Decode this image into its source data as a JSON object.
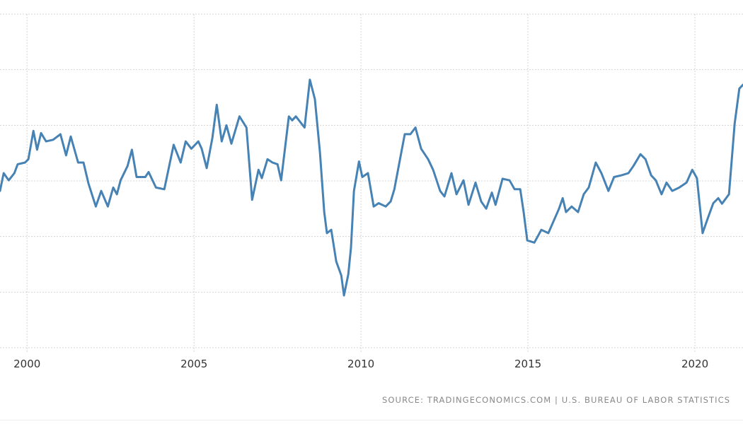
{
  "chart_data": {
    "type": "line",
    "title": "",
    "xlabel": "",
    "ylabel": "",
    "xlim": [
      1999.19,
      2021.44
    ],
    "ylim": [
      0,
      6
    ],
    "grid": true,
    "line_color": "#4682b4",
    "x_ticks": [
      {
        "value": 2000,
        "label": "2000"
      },
      {
        "value": 2005,
        "label": "2005"
      },
      {
        "value": 2010,
        "label": "2010"
      },
      {
        "value": 2015,
        "label": "2015"
      },
      {
        "value": 2020,
        "label": "2020"
      }
    ],
    "y_gridlines": [
      0,
      1,
      2,
      3,
      4,
      5,
      6
    ],
    "series": [
      {
        "name": "series",
        "points": [
          [
            1999.19,
            2.82
          ],
          [
            1999.3,
            3.14
          ],
          [
            1999.45,
            3.01
          ],
          [
            1999.62,
            3.14
          ],
          [
            1999.72,
            3.3
          ],
          [
            1999.94,
            3.33
          ],
          [
            2000.04,
            3.39
          ],
          [
            2000.19,
            3.9
          ],
          [
            2000.3,
            3.56
          ],
          [
            2000.42,
            3.86
          ],
          [
            2000.57,
            3.71
          ],
          [
            2000.78,
            3.74
          ],
          [
            2001.0,
            3.84
          ],
          [
            2001.17,
            3.46
          ],
          [
            2001.31,
            3.8
          ],
          [
            2001.53,
            3.33
          ],
          [
            2001.69,
            3.33
          ],
          [
            2001.84,
            2.95
          ],
          [
            2002.06,
            2.54
          ],
          [
            2002.22,
            2.82
          ],
          [
            2002.42,
            2.54
          ],
          [
            2002.58,
            2.88
          ],
          [
            2002.69,
            2.76
          ],
          [
            2002.8,
            3.01
          ],
          [
            2003.01,
            3.27
          ],
          [
            2003.14,
            3.56
          ],
          [
            2003.28,
            3.07
          ],
          [
            2003.54,
            3.07
          ],
          [
            2003.64,
            3.16
          ],
          [
            2003.86,
            2.88
          ],
          [
            2004.11,
            2.85
          ],
          [
            2004.39,
            3.65
          ],
          [
            2004.6,
            3.33
          ],
          [
            2004.75,
            3.71
          ],
          [
            2004.92,
            3.58
          ],
          [
            2005.13,
            3.71
          ],
          [
            2005.23,
            3.58
          ],
          [
            2005.38,
            3.23
          ],
          [
            2005.55,
            3.77
          ],
          [
            2005.68,
            4.37
          ],
          [
            2005.83,
            3.71
          ],
          [
            2005.97,
            4.0
          ],
          [
            2006.12,
            3.67
          ],
          [
            2006.36,
            4.16
          ],
          [
            2006.57,
            3.96
          ],
          [
            2006.74,
            2.66
          ],
          [
            2006.93,
            3.2
          ],
          [
            2007.03,
            3.05
          ],
          [
            2007.2,
            3.39
          ],
          [
            2007.35,
            3.33
          ],
          [
            2007.5,
            3.3
          ],
          [
            2007.61,
            3.01
          ],
          [
            2007.84,
            4.16
          ],
          [
            2007.94,
            4.09
          ],
          [
            2008.05,
            4.16
          ],
          [
            2008.31,
            3.96
          ],
          [
            2008.47,
            4.82
          ],
          [
            2008.62,
            4.47
          ],
          [
            2008.77,
            3.52
          ],
          [
            2008.9,
            2.44
          ],
          [
            2008.98,
            2.06
          ],
          [
            2009.11,
            2.12
          ],
          [
            2009.26,
            1.55
          ],
          [
            2009.41,
            1.3
          ],
          [
            2009.49,
            0.94
          ],
          [
            2009.62,
            1.32
          ],
          [
            2009.7,
            1.8
          ],
          [
            2009.79,
            2.82
          ],
          [
            2009.94,
            3.35
          ],
          [
            2010.04,
            3.07
          ],
          [
            2010.21,
            3.14
          ],
          [
            2010.38,
            2.54
          ],
          [
            2010.53,
            2.6
          ],
          [
            2010.74,
            2.54
          ],
          [
            2010.89,
            2.63
          ],
          [
            2011.0,
            2.85
          ],
          [
            2011.17,
            3.39
          ],
          [
            2011.31,
            3.84
          ],
          [
            2011.48,
            3.84
          ],
          [
            2011.63,
            3.96
          ],
          [
            2011.8,
            3.58
          ],
          [
            2012.01,
            3.39
          ],
          [
            2012.16,
            3.2
          ],
          [
            2012.37,
            2.82
          ],
          [
            2012.5,
            2.72
          ],
          [
            2012.71,
            3.14
          ],
          [
            2012.86,
            2.76
          ],
          [
            2013.07,
            3.01
          ],
          [
            2013.22,
            2.57
          ],
          [
            2013.43,
            2.97
          ],
          [
            2013.6,
            2.63
          ],
          [
            2013.75,
            2.5
          ],
          [
            2013.92,
            2.79
          ],
          [
            2014.03,
            2.57
          ],
          [
            2014.24,
            3.04
          ],
          [
            2014.45,
            3.01
          ],
          [
            2014.6,
            2.85
          ],
          [
            2014.77,
            2.85
          ],
          [
            2014.87,
            2.44
          ],
          [
            2014.98,
            1.93
          ],
          [
            2015.19,
            1.89
          ],
          [
            2015.4,
            2.12
          ],
          [
            2015.61,
            2.06
          ],
          [
            2015.93,
            2.5
          ],
          [
            2016.04,
            2.69
          ],
          [
            2016.14,
            2.44
          ],
          [
            2016.31,
            2.54
          ],
          [
            2016.5,
            2.44
          ],
          [
            2016.67,
            2.76
          ],
          [
            2016.82,
            2.88
          ],
          [
            2017.03,
            3.33
          ],
          [
            2017.2,
            3.14
          ],
          [
            2017.41,
            2.82
          ],
          [
            2017.58,
            3.07
          ],
          [
            2017.8,
            3.1
          ],
          [
            2018.01,
            3.14
          ],
          [
            2018.16,
            3.27
          ],
          [
            2018.37,
            3.48
          ],
          [
            2018.52,
            3.39
          ],
          [
            2018.69,
            3.1
          ],
          [
            2018.83,
            3.01
          ],
          [
            2019.0,
            2.76
          ],
          [
            2019.15,
            2.97
          ],
          [
            2019.32,
            2.82
          ],
          [
            2019.53,
            2.88
          ],
          [
            2019.75,
            2.97
          ],
          [
            2019.92,
            3.2
          ],
          [
            2020.06,
            3.05
          ],
          [
            2020.23,
            2.06
          ],
          [
            2020.38,
            2.32
          ],
          [
            2020.55,
            2.6
          ],
          [
            2020.7,
            2.69
          ],
          [
            2020.81,
            2.59
          ],
          [
            2021.02,
            2.76
          ],
          [
            2021.19,
            4.03
          ],
          [
            2021.33,
            4.66
          ],
          [
            2021.44,
            4.73
          ]
        ]
      }
    ]
  },
  "source": "SOURCE: TRADINGECONOMICS.COM | U.S. BUREAU OF LABOR STATISTICS"
}
